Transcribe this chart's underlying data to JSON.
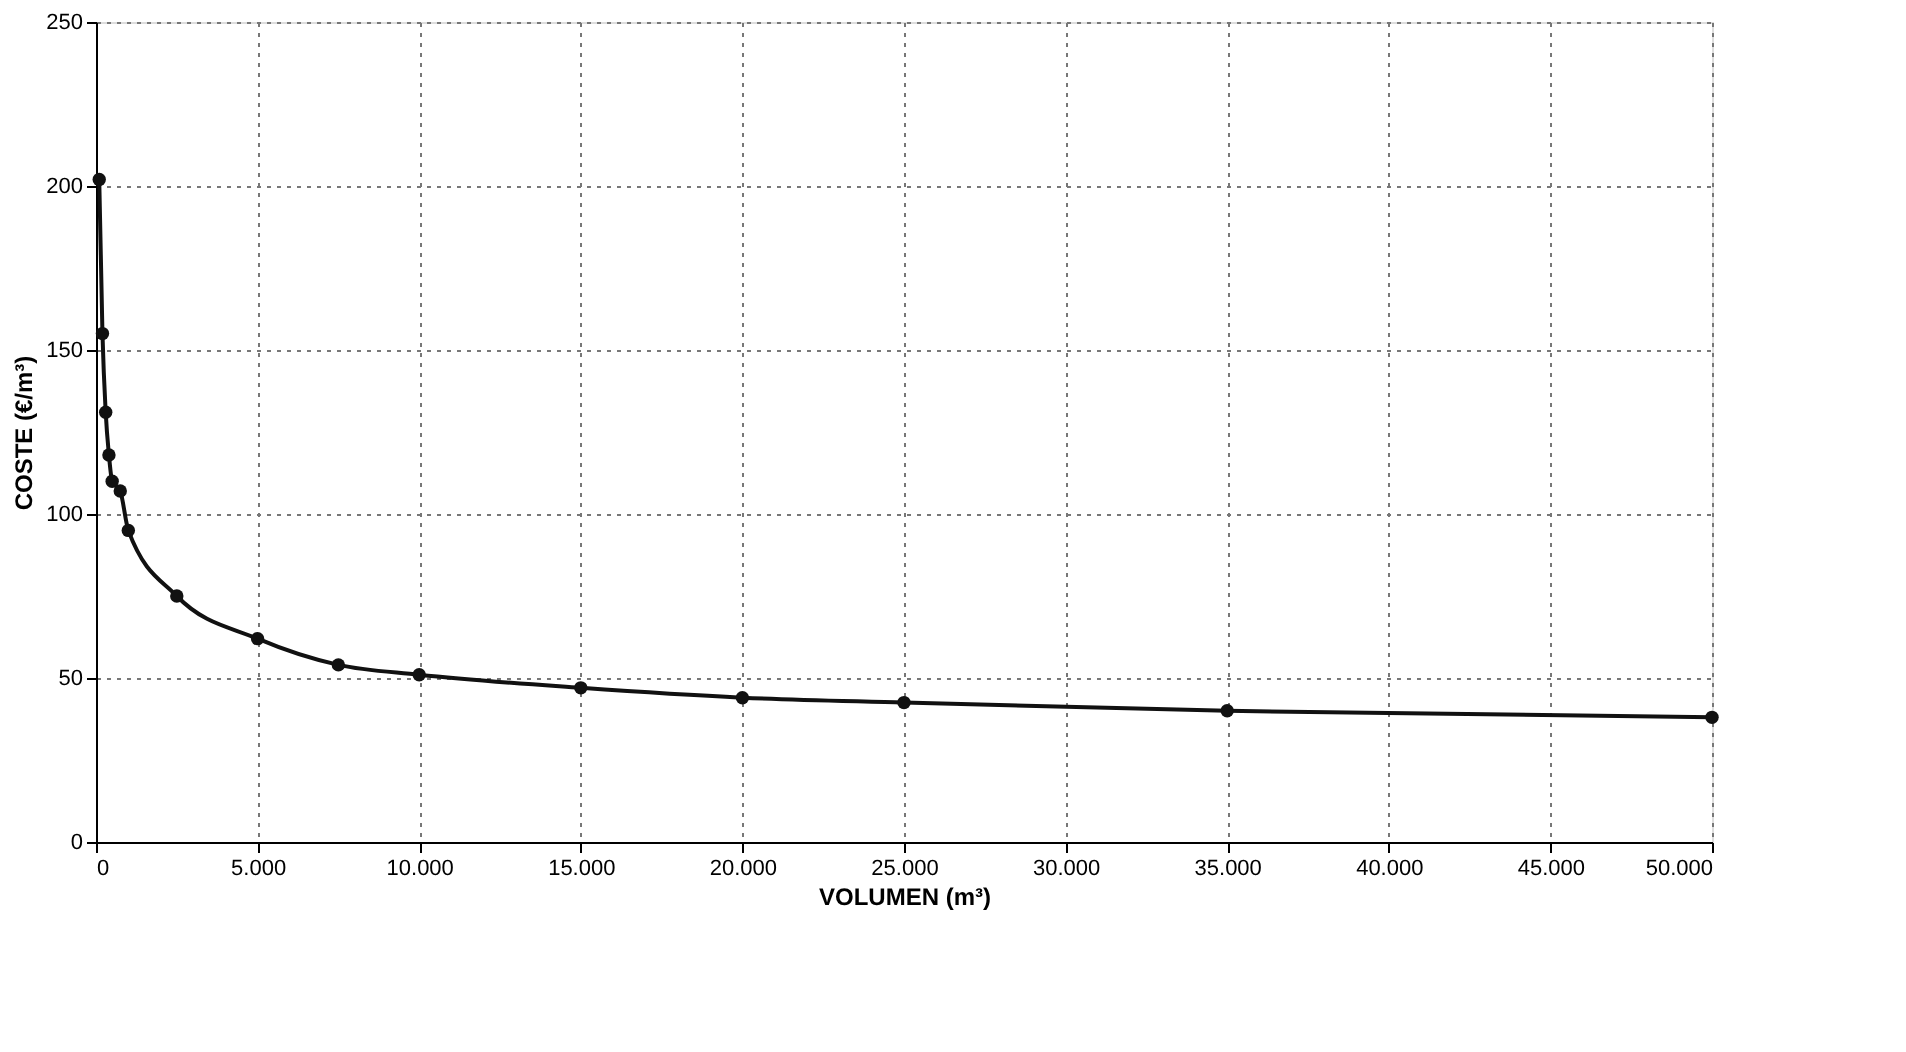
{
  "chart_data": {
    "type": "line",
    "xlabel": "VOLUMEN (m³)",
    "ylabel": "COSTE (€/m³)",
    "x": [
      100,
      200,
      300,
      400,
      500,
      750,
      1000,
      2500,
      5000,
      7500,
      10000,
      15000,
      20000,
      25000,
      35000,
      50000
    ],
    "series": [
      {
        "color": "#111111",
        "values": [
          202,
          155,
          131,
          118,
          110,
          107,
          95,
          75,
          62,
          54,
          51,
          47,
          44,
          42.5,
          40,
          38
        ]
      }
    ],
    "xlim": [
      0,
      50000
    ],
    "ylim": [
      0,
      250
    ],
    "xticks": [
      0,
      {
        "value": 5000,
        "label": "5.000"
      },
      {
        "value": 10000,
        "label": "10.000"
      },
      {
        "value": 15000,
        "label": "15.000"
      },
      {
        "value": 20000,
        "label": "20.000"
      },
      {
        "value": 25000,
        "label": "25.000"
      },
      {
        "value": 30000,
        "label": "30.000"
      },
      {
        "value": 35000,
        "label": "35.000"
      },
      {
        "value": 40000,
        "label": "40.000"
      },
      {
        "value": 45000,
        "label": "45.000"
      },
      {
        "value": 50000,
        "label": "50.000"
      }
    ],
    "yticks": [
      0,
      50,
      100,
      150,
      200,
      250
    ],
    "grid": true,
    "marker": "circle",
    "line_style": "solid",
    "legend": false
  }
}
